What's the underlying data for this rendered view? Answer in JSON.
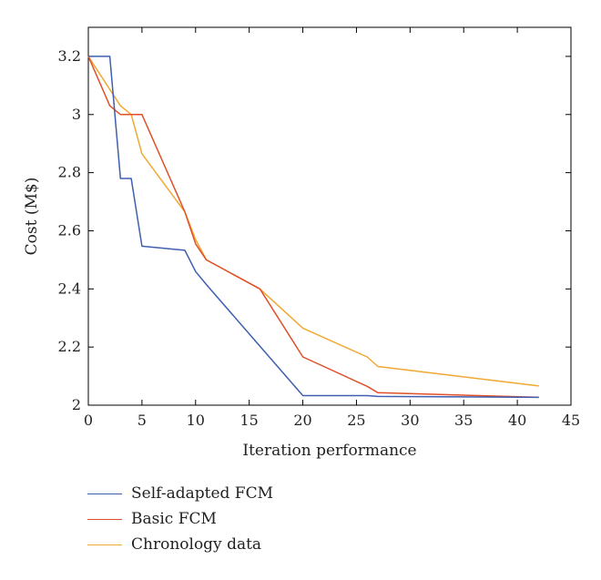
{
  "chart_data": {
    "type": "line",
    "title": "",
    "xlabel": "Iteration performance",
    "ylabel": "Cost (M$)",
    "xlim": [
      0,
      45
    ],
    "ylim": [
      2,
      3.3
    ],
    "xticks": [
      0,
      5,
      10,
      15,
      20,
      25,
      30,
      35,
      40,
      45
    ],
    "yticks": [
      2,
      2.2,
      2.4,
      2.6,
      2.8,
      3,
      3.2
    ],
    "xtick_labels": [
      "0",
      "5",
      "10",
      "15",
      "20",
      "25",
      "30",
      "35",
      "40",
      "45"
    ],
    "ytick_labels": [
      "2",
      "2.2",
      "2.4",
      "2.6",
      "2.8",
      "3",
      "3.2"
    ],
    "grid": false,
    "legend_position": "bottom-left (below plot)",
    "series": [
      {
        "name": "Self-adapted FCM",
        "color": "#3f5fb0",
        "x": [
          0,
          2,
          3,
          4,
          5,
          9,
          10,
          11,
          20,
          26,
          27,
          42
        ],
        "y": [
          3.2,
          3.2,
          2.78,
          2.78,
          2.547,
          2.533,
          2.46,
          2.415,
          2.033,
          2.033,
          2.03,
          2.027
        ]
      },
      {
        "name": "Basic FCM",
        "color": "#e0502a",
        "x": [
          0,
          2,
          3,
          5,
          9,
          10,
          11,
          16,
          20,
          26,
          27,
          42
        ],
        "y": [
          3.2,
          3.03,
          3.0,
          3.0,
          2.665,
          2.555,
          2.5,
          2.4,
          2.166,
          2.065,
          2.043,
          2.027
        ]
      },
      {
        "name": "Chronology data",
        "color": "#f0a830",
        "x": [
          0,
          3,
          4,
          5,
          9,
          10,
          11,
          16,
          20,
          26,
          27,
          42
        ],
        "y": [
          3.2,
          3.03,
          3.0,
          2.865,
          2.665,
          2.57,
          2.5,
          2.4,
          2.265,
          2.166,
          2.133,
          2.066
        ]
      }
    ]
  }
}
